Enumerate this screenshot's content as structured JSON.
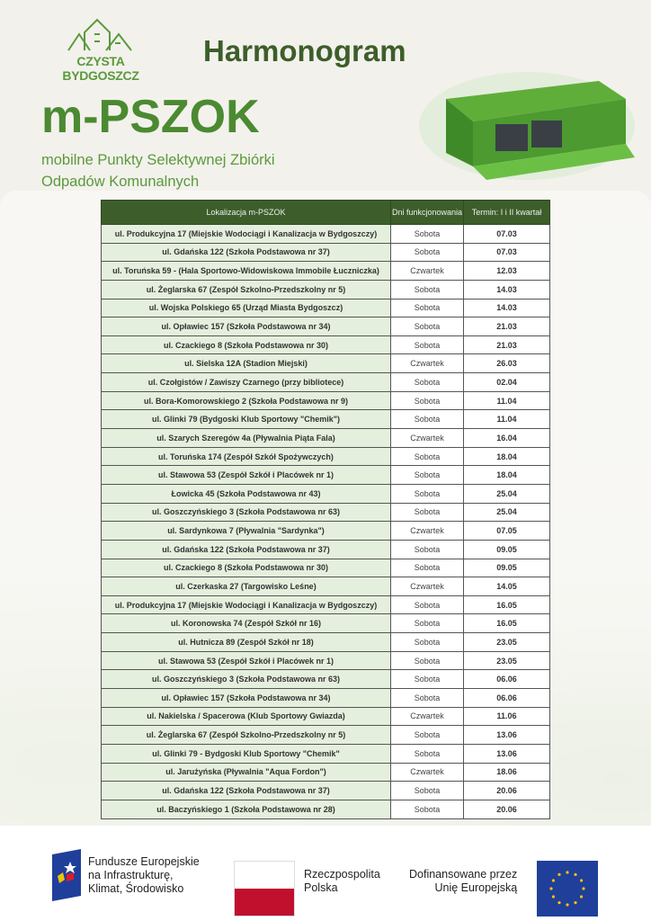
{
  "logo": {
    "text": "CZYSTA BYDGOSZCZ"
  },
  "header": {
    "title": "Harmonogram",
    "name": "m-PSZOK",
    "subtitle_line1": "mobilne Punkty Selektywnej Zbiórki",
    "subtitle_line2": "Odpadów Komunalnych"
  },
  "table": {
    "headers": [
      "Lokalizacja m-PSZOK",
      "Dni funkcjonowania",
      "Termin: I i II kwartał"
    ],
    "rows": [
      [
        "ul. Produkcyjna 17  (Miejskie Wodociągi i Kanalizacja w Bydgoszczy)",
        "Sobota",
        "07.03"
      ],
      [
        "ul. Gdańska 122 (Szkoła Podstawowa nr 37)",
        "Sobota",
        "07.03"
      ],
      [
        "ul. Toruńska 59 - (Hala Sportowo-Widowiskowa Immobile Łuczniczka)",
        "Czwartek",
        "12.03"
      ],
      [
        "ul. Żeglarska 67 (Zespół Szkolno-Przedszkolny nr 5)",
        "Sobota",
        "14.03"
      ],
      [
        "ul. Wojska Polskiego 65 (Urząd Miasta Bydgoszcz)",
        "Sobota",
        "14.03"
      ],
      [
        "ul. Opławiec 157 (Szkoła Podstawowa nr 34)",
        "Sobota",
        "21.03"
      ],
      [
        "ul. Czackiego 8 (Szkoła Podstawowa nr 30)",
        "Sobota",
        "21.03"
      ],
      [
        "ul. Sielska 12A (Stadion Miejski)",
        "Czwartek",
        "26.03"
      ],
      [
        "ul. Czołgistów / Zawiszy Czarnego (przy bibliotece)",
        "Sobota",
        "02.04"
      ],
      [
        "ul. Bora-Komorowskiego 2 (Szkoła Podstawowa nr 9)",
        "Sobota",
        "11.04"
      ],
      [
        "ul. Glinki 79 (Bydgoski Klub Sportowy \"Chemik\")",
        "Sobota",
        "11.04"
      ],
      [
        "ul. Szarych Szeregów 4a (Pływalnia Piąta Fala)",
        "Czwartek",
        "16.04"
      ],
      [
        "ul. Toruńska 174 (Zespół Szkół Spożywczych)",
        "Sobota",
        "18.04"
      ],
      [
        "ul. Stawowa 53 (Zespół Szkół i Placówek nr 1)",
        "Sobota",
        "18.04"
      ],
      [
        "Łowicka 45 (Szkoła Podstawowa nr 43)",
        "Sobota",
        "25.04"
      ],
      [
        "ul. Goszczyńskiego 3 (Szkoła Podstawowa nr 63)",
        "Sobota",
        "25.04"
      ],
      [
        "ul. Sardynkowa 7 (Pływalnia \"Sardynka\")",
        "Czwartek",
        "07.05"
      ],
      [
        "ul. Gdańska 122 (Szkoła Podstawowa nr 37)",
        "Sobota",
        "09.05"
      ],
      [
        "ul. Czackiego 8 (Szkoła Podstawowa nr 30)",
        "Sobota",
        "09.05"
      ],
      [
        "ul. Czerkaska 27 (Targowisko Leśne)",
        "Czwartek",
        "14.05"
      ],
      [
        "ul. Produkcyjna 17  (Miejskie Wodociągi i Kanalizacja w Bydgoszczy)",
        "Sobota",
        "16.05"
      ],
      [
        "ul. Koronowska 74 (Zespół Szkół nr 16)",
        "Sobota",
        "16.05"
      ],
      [
        "ul. Hutnicza 89 (Zespół Szkół nr 18)",
        "Sobota",
        "23.05"
      ],
      [
        "ul. Stawowa 53 (Zespół Szkół i Placówek nr 1)",
        "Sobota",
        "23.05"
      ],
      [
        "ul. Goszczyńskiego 3 (Szkoła Podstawowa nr 63)",
        "Sobota",
        "06.06"
      ],
      [
        "ul. Opławiec 157 (Szkoła Podstawowa nr 34)",
        "Sobota",
        "06.06"
      ],
      [
        "ul. Nakielska / Spacerowa (Klub Sportowy Gwiazda)",
        "Czwartek",
        "11.06"
      ],
      [
        "ul. Żeglarska 67 (Zespół Szkolno-Przedszkolny nr 5)",
        "Sobota",
        "13.06"
      ],
      [
        "ul. Glinki 79 - Bydgoski Klub Sportowy \"Chemik\"",
        "Sobota",
        "13.06"
      ],
      [
        "ul. Jarużyńska (Pływalnia \"Aqua Fordon\")",
        "Czwartek",
        "18.06"
      ],
      [
        "ul. Gdańska 122 (Szkoła Podstawowa nr 37)",
        "Sobota",
        "20.06"
      ],
      [
        "ul. Baczyńskiego 1 (Szkoła Podstawowa nr 28)",
        "Sobota",
        "20.06"
      ]
    ]
  },
  "footer": {
    "fe_line1": "Fundusze Europejskie",
    "fe_line2": "na Infrastrukturę,",
    "fe_line3": "Klimat, Środowisko",
    "pl_line1": "Rzeczpospolita",
    "pl_line2": "Polska",
    "eu_line1": "Dofinansowane przez",
    "eu_line2": "Unię Europejską"
  },
  "colors": {
    "header_green": "#3d5e2a",
    "title_green": "#4b8a31",
    "location_cell": "#e5efdd"
  }
}
